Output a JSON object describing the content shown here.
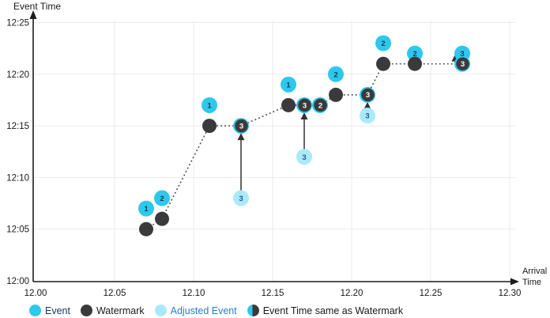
{
  "chart_data": {
    "type": "scatter",
    "x_axis": {
      "title": "Arrival Time",
      "title_lines": [
        "Arrival",
        "Time"
      ],
      "ticks": [
        "12.00",
        "12.05",
        "12.10",
        "12.15",
        "12.20",
        "12.25",
        "12.30"
      ],
      "range": [
        12.0,
        12.3
      ],
      "grid": true
    },
    "y_axis": {
      "title": "Event Time",
      "ticks": [
        "12:00",
        "12:05",
        "12:10",
        "12:15",
        "12:20",
        "12:25"
      ],
      "range": [
        "12:00",
        "12:25"
      ],
      "grid": true
    },
    "legend_position": "bottom",
    "series": [
      {
        "name": "Event",
        "color": "#2EC8EC",
        "label_color": "#0E3D5C",
        "points": [
          {
            "label": "1",
            "arrival": 12.07,
            "event_time": "12:07"
          },
          {
            "label": "2",
            "arrival": 12.08,
            "event_time": "12:08"
          },
          {
            "label": "1",
            "arrival": 12.11,
            "event_time": "12:17"
          },
          {
            "label": "1",
            "arrival": 12.16,
            "event_time": "12:19"
          },
          {
            "label": "2",
            "arrival": 12.19,
            "event_time": "12:20"
          },
          {
            "label": "2",
            "arrival": 12.22,
            "event_time": "12:23"
          },
          {
            "label": "2",
            "arrival": 12.24,
            "event_time": "12:22"
          },
          {
            "label": "3",
            "arrival": 12.27,
            "event_time": "12:22"
          }
        ]
      },
      {
        "name": "Watermark",
        "color": "#3A3A3C",
        "points": [
          {
            "arrival": 12.07,
            "event_time": "12:05"
          },
          {
            "arrival": 12.08,
            "event_time": "12:06"
          },
          {
            "arrival": 12.11,
            "event_time": "12:15"
          },
          {
            "arrival": 12.13,
            "event_time": "12:15",
            "label": "3"
          },
          {
            "arrival": 12.16,
            "event_time": "12:17"
          },
          {
            "arrival": 12.17,
            "event_time": "12:17",
            "label": "3"
          },
          {
            "arrival": 12.18,
            "event_time": "12:17",
            "label": "2"
          },
          {
            "arrival": 12.19,
            "event_time": "12:18"
          },
          {
            "arrival": 12.21,
            "event_time": "12:18",
            "label": "3"
          },
          {
            "arrival": 12.22,
            "event_time": "12:21"
          },
          {
            "arrival": 12.24,
            "event_time": "12:21"
          },
          {
            "arrival": 12.27,
            "event_time": "12:21",
            "label": "3"
          }
        ]
      },
      {
        "name": "Adjusted Event",
        "color": "#A9E9FA",
        "label_color": "#1D5E8F",
        "points": [
          {
            "label": "3",
            "arrival": 12.13,
            "event_time": "12:08",
            "adjusted_to": "12:15"
          },
          {
            "label": "3",
            "arrival": 12.17,
            "event_time": "12:12",
            "adjusted_to": "12:17"
          },
          {
            "label": "3",
            "arrival": 12.21,
            "event_time": "12:16",
            "adjusted_to": "12:18"
          }
        ]
      }
    ],
    "arrows": [
      {
        "arrival": 12.13,
        "from": "12:08",
        "to": "12:15"
      },
      {
        "arrival": 12.17,
        "from": "12:12",
        "to": "12:17"
      },
      {
        "arrival": 12.21,
        "from": "12:16",
        "to": "12:18"
      },
      {
        "arrival": 12.27,
        "from": "12:21",
        "to": "12:22",
        "dx": -9,
        "small": true
      }
    ]
  },
  "legend": {
    "items": [
      {
        "label": "Event",
        "color": "#2EC8EC",
        "text_color": "#17375E"
      },
      {
        "label": "Watermark",
        "color": "#3A3A3C",
        "text_color": "#1A1A1A"
      },
      {
        "label": "Adjusted Event",
        "color": "#A9E9FA",
        "text_color": "#2B7BD3"
      },
      {
        "label": "Event Time same as Watermark",
        "color": "#2EC8EC",
        "color2": "#3A3A3C",
        "text_color": "#1A1A1A"
      }
    ]
  }
}
